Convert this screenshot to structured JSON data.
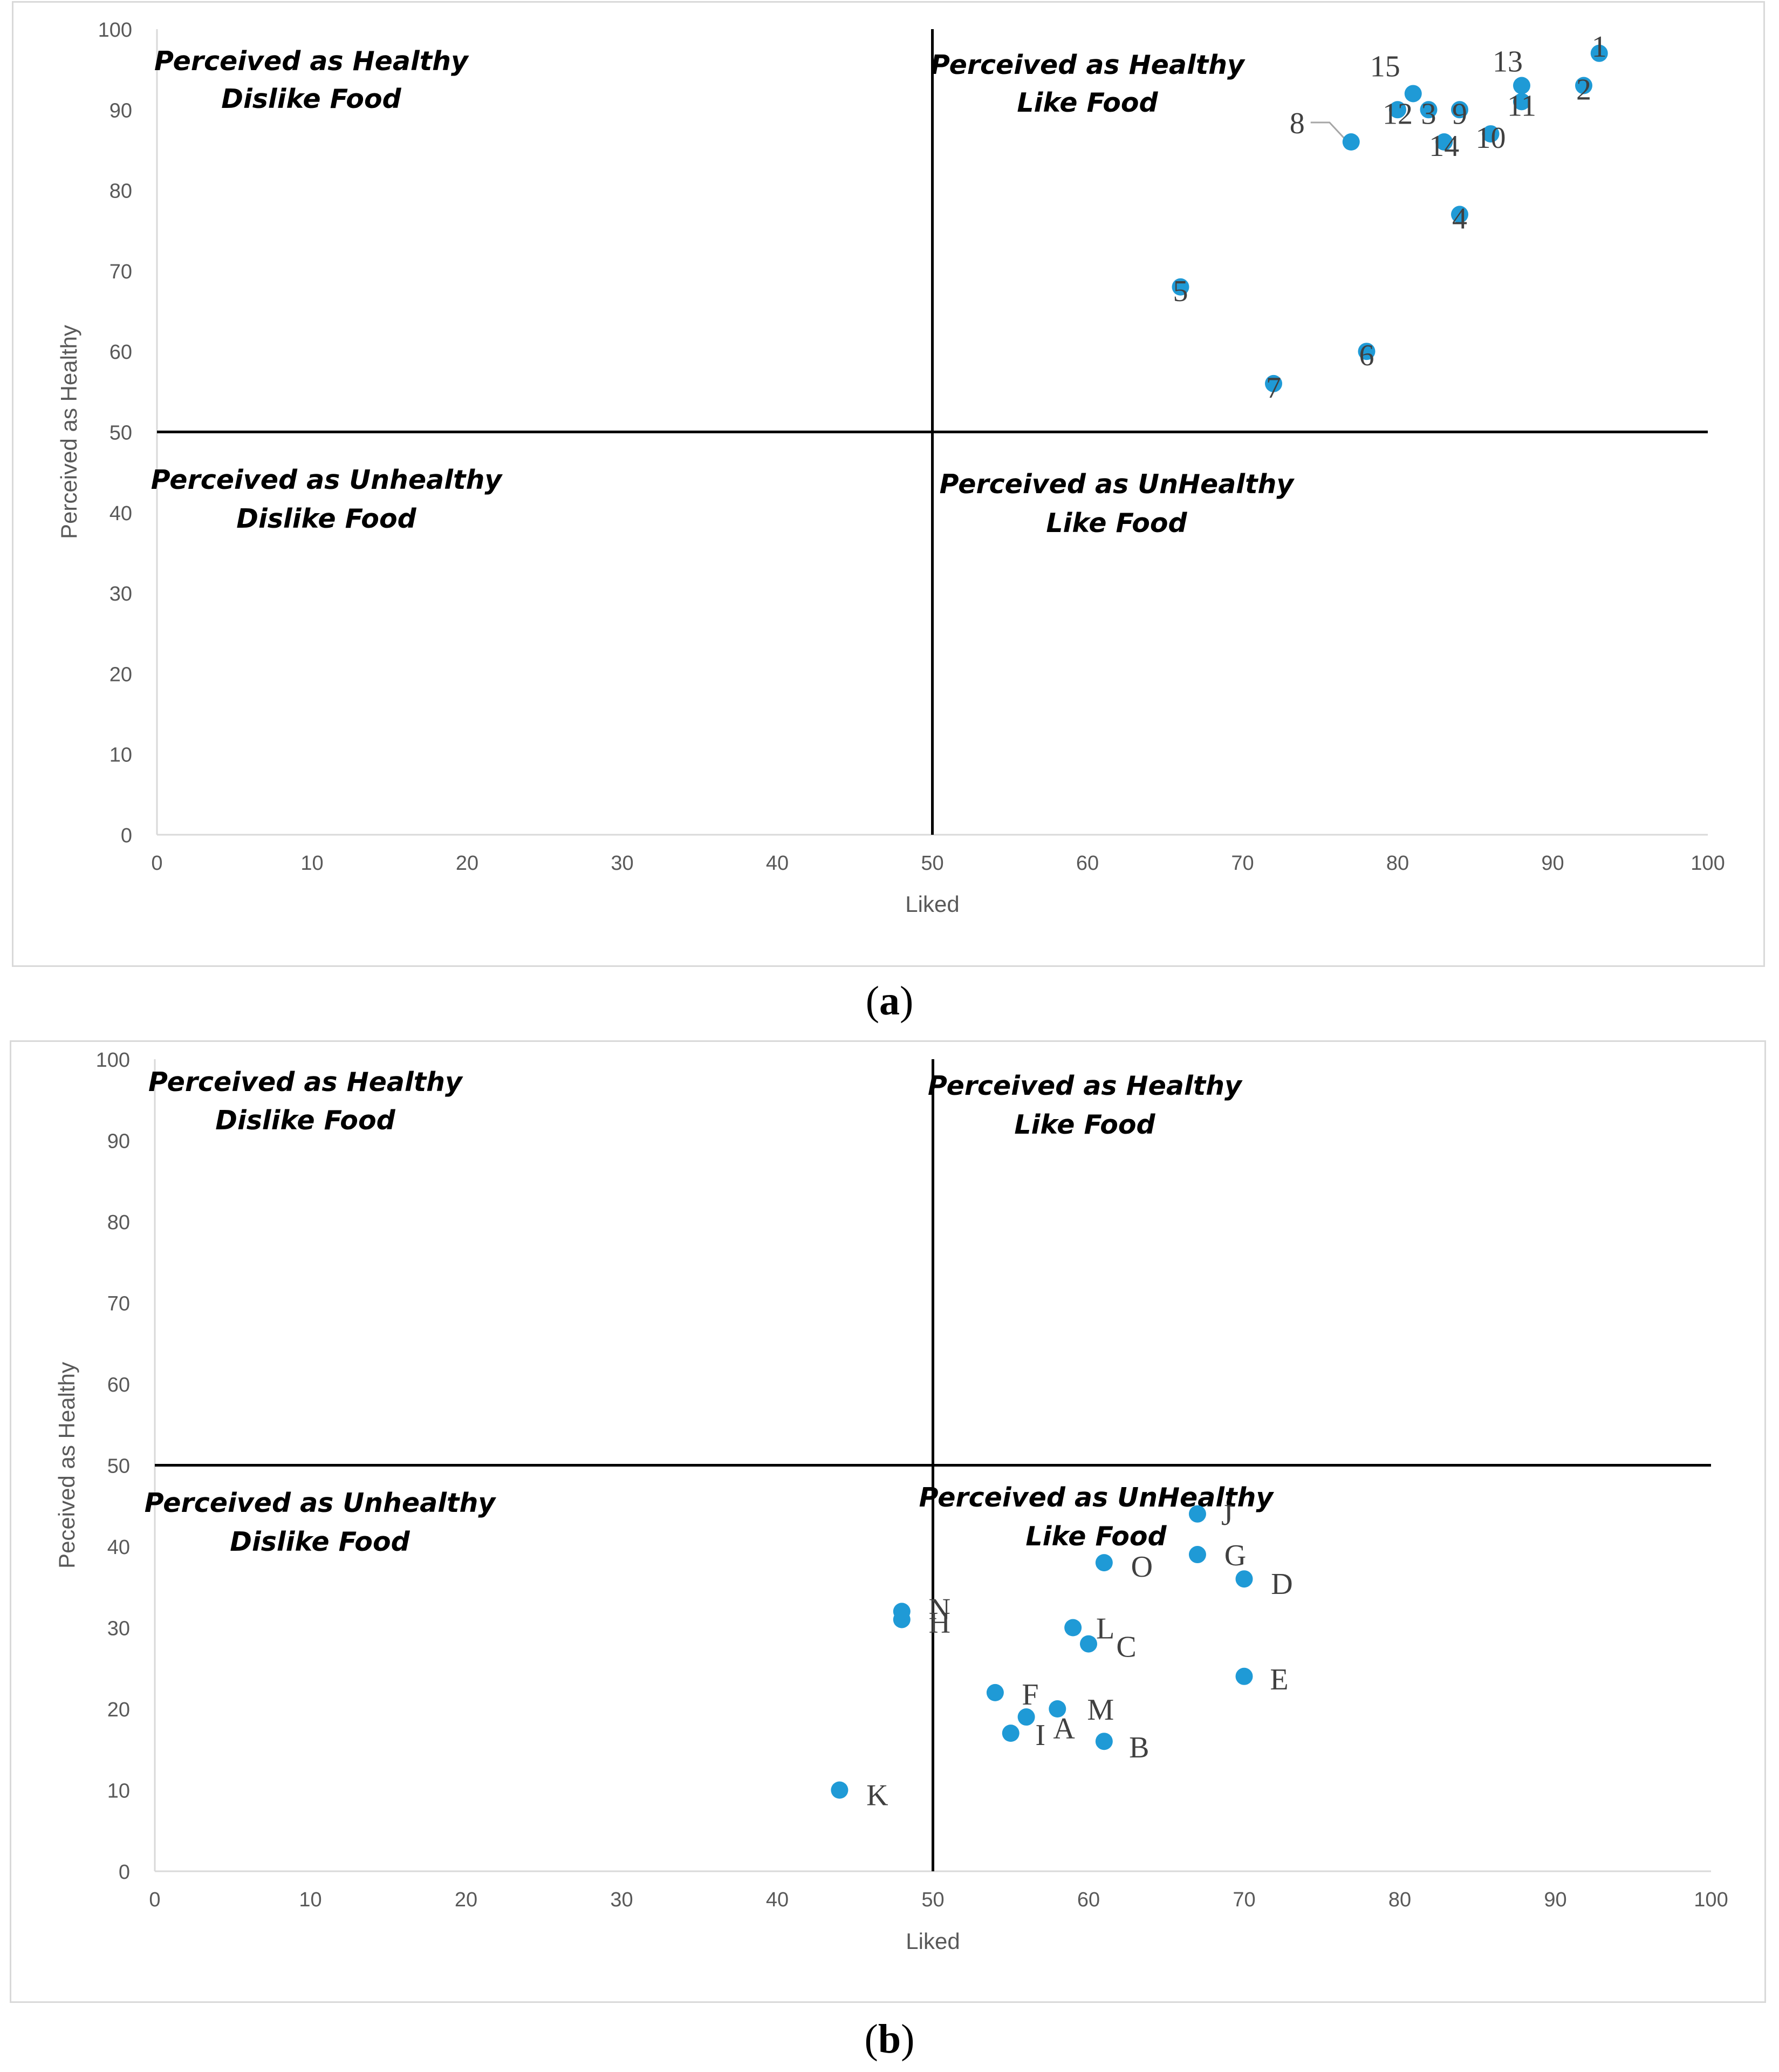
{
  "chart_data": [
    {
      "type": "scatter",
      "panel_label": "a",
      "xlabel": "Liked",
      "ylabel": "Perceived as Healthy",
      "xlim": [
        0,
        100
      ],
      "ylim": [
        0,
        100
      ],
      "xticks": [
        0,
        10,
        20,
        30,
        40,
        50,
        60,
        70,
        80,
        90,
        100
      ],
      "yticks": [
        0,
        10,
        20,
        30,
        40,
        50,
        60,
        70,
        80,
        90,
        100
      ],
      "grid": false,
      "divider_x": 50,
      "divider_y": 50,
      "marker_color": "#1f9ad6",
      "quadrants": [
        {
          "id": "hd",
          "line1": "Perceived as Healthy",
          "line2": "Dislike Food"
        },
        {
          "id": "hl",
          "line1": "Perceived as Healthy",
          "line2": "Like Food"
        },
        {
          "id": "ud",
          "line1": "Perceived as Unhealthy",
          "line2": "Dislike Food"
        },
        {
          "id": "ul",
          "line1": "Perceived as UnHealthy",
          "line2": "Like Food"
        }
      ],
      "points": [
        {
          "label": "1",
          "x": 93,
          "y": 97
        },
        {
          "label": "2",
          "x": 92,
          "y": 93
        },
        {
          "label": "3",
          "x": 82,
          "y": 90
        },
        {
          "label": "4",
          "x": 84,
          "y": 77
        },
        {
          "label": "5",
          "x": 66,
          "y": 68
        },
        {
          "label": "6",
          "x": 78,
          "y": 60
        },
        {
          "label": "7",
          "x": 72,
          "y": 56
        },
        {
          "label": "8",
          "x": 77,
          "y": 86
        },
        {
          "label": "9",
          "x": 84,
          "y": 90
        },
        {
          "label": "10",
          "x": 86,
          "y": 87
        },
        {
          "label": "11",
          "x": 88,
          "y": 91
        },
        {
          "label": "12",
          "x": 80,
          "y": 90
        },
        {
          "label": "13",
          "x": 88,
          "y": 93
        },
        {
          "label": "14",
          "x": 83,
          "y": 86
        },
        {
          "label": "15",
          "x": 81,
          "y": 92
        }
      ]
    },
    {
      "type": "scatter",
      "panel_label": "b",
      "xlabel": "Liked",
      "ylabel": "Peceived as Healthy",
      "xlim": [
        0,
        100
      ],
      "ylim": [
        0,
        100
      ],
      "xticks": [
        0,
        10,
        20,
        30,
        40,
        50,
        60,
        70,
        80,
        90,
        100
      ],
      "yticks": [
        0,
        10,
        20,
        30,
        40,
        50,
        60,
        70,
        80,
        90,
        100
      ],
      "grid": false,
      "divider_x": 50,
      "divider_y": 50,
      "marker_color": "#1f9ad6",
      "quadrants": [
        {
          "id": "hd",
          "line1": "Perceived as Healthy",
          "line2": "Dislike Food"
        },
        {
          "id": "hl",
          "line1": "Perceived as Healthy",
          "line2": "Like Food"
        },
        {
          "id": "ud",
          "line1": "Perceived as Unhealthy",
          "line2": "Dislike Food"
        },
        {
          "id": "ul",
          "line1": "Perceived as UnHealthy",
          "line2": "Like Food"
        }
      ],
      "points": [
        {
          "label": "A",
          "x": 56,
          "y": 19
        },
        {
          "label": "B",
          "x": 61,
          "y": 16
        },
        {
          "label": "C",
          "x": 60,
          "y": 28
        },
        {
          "label": "D",
          "x": 70,
          "y": 36
        },
        {
          "label": "E",
          "x": 70,
          "y": 24
        },
        {
          "label": "F",
          "x": 54,
          "y": 22
        },
        {
          "label": "G",
          "x": 67,
          "y": 39
        },
        {
          "label": "H",
          "x": 48,
          "y": 31
        },
        {
          "label": "I",
          "x": 55,
          "y": 17
        },
        {
          "label": "J",
          "x": 67,
          "y": 44
        },
        {
          "label": "K",
          "x": 44,
          "y": 10
        },
        {
          "label": "L",
          "x": 59,
          "y": 30
        },
        {
          "label": "M",
          "x": 58,
          "y": 20
        },
        {
          "label": "N",
          "x": 48,
          "y": 32
        },
        {
          "label": "O",
          "x": 61,
          "y": 38
        }
      ]
    }
  ]
}
